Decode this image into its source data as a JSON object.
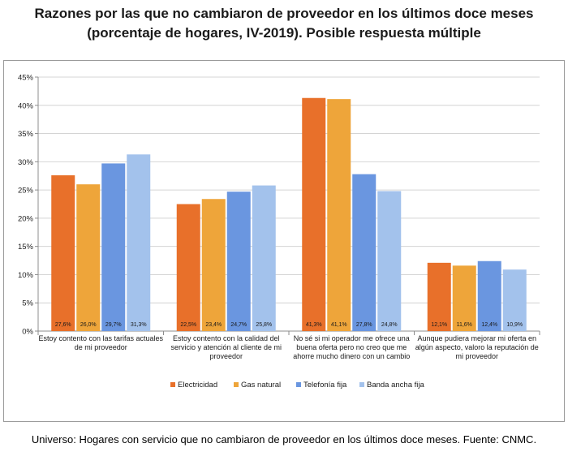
{
  "title_line1": "Razones por las que no cambiaron de proveedor en los últimos doce meses",
  "title_line2": "(porcentaje de hogares, IV-2019). Posible respuesta múltiple",
  "footer": "Universo: Hogares con servicio que no cambiaron de proveedor en los últimos doce meses. Fuente: CNMC.",
  "colors": {
    "Electricidad": "#e8702a",
    "Gas natural": "#eea53a",
    "Telefonía fija": "#6a96e0",
    "Banda ancha fija": "#a3c2ec"
  },
  "chart_data": {
    "type": "bar",
    "categories": [
      [
        "Estoy contento con las tarifas actuales",
        "de mi proveedor"
      ],
      [
        "Estoy contento con la calidad del",
        "servicio y atención al cliente de mi",
        "proveedor"
      ],
      [
        "No sé si mi operador me ofrece una",
        "buena oferta pero no creo que me",
        "ahorre mucho dinero con un cambio"
      ],
      [
        "Aunque pudiera mejorar mi oferta en",
        "algún aspecto, valoro la reputación de",
        "mi proveedor"
      ]
    ],
    "series": [
      {
        "name": "Electricidad",
        "values": [
          27.6,
          22.5,
          41.3,
          12.1
        ],
        "labels": [
          "27,6%",
          "22,5%",
          "41,3%",
          "12,1%"
        ]
      },
      {
        "name": "Gas natural",
        "values": [
          26.0,
          23.4,
          41.1,
          11.6
        ],
        "labels": [
          "26,0%",
          "23,4%",
          "41,1%",
          "11,6%"
        ]
      },
      {
        "name": "Telefonía fija",
        "values": [
          29.7,
          24.7,
          27.8,
          12.4
        ],
        "labels": [
          "29,7%",
          "24,7%",
          "27,8%",
          "12,4%"
        ]
      },
      {
        "name": "Banda ancha fija",
        "values": [
          31.3,
          25.8,
          24.8,
          10.9
        ],
        "labels": [
          "31,3%",
          "25,8%",
          "24,8%",
          "10,9%"
        ]
      }
    ],
    "yticks": [
      "0%",
      "5%",
      "10%",
      "15%",
      "20%",
      "25%",
      "30%",
      "35%",
      "40%",
      "45%"
    ],
    "ylim": [
      0,
      45
    ],
    "grid": true,
    "legend": "bottom"
  }
}
